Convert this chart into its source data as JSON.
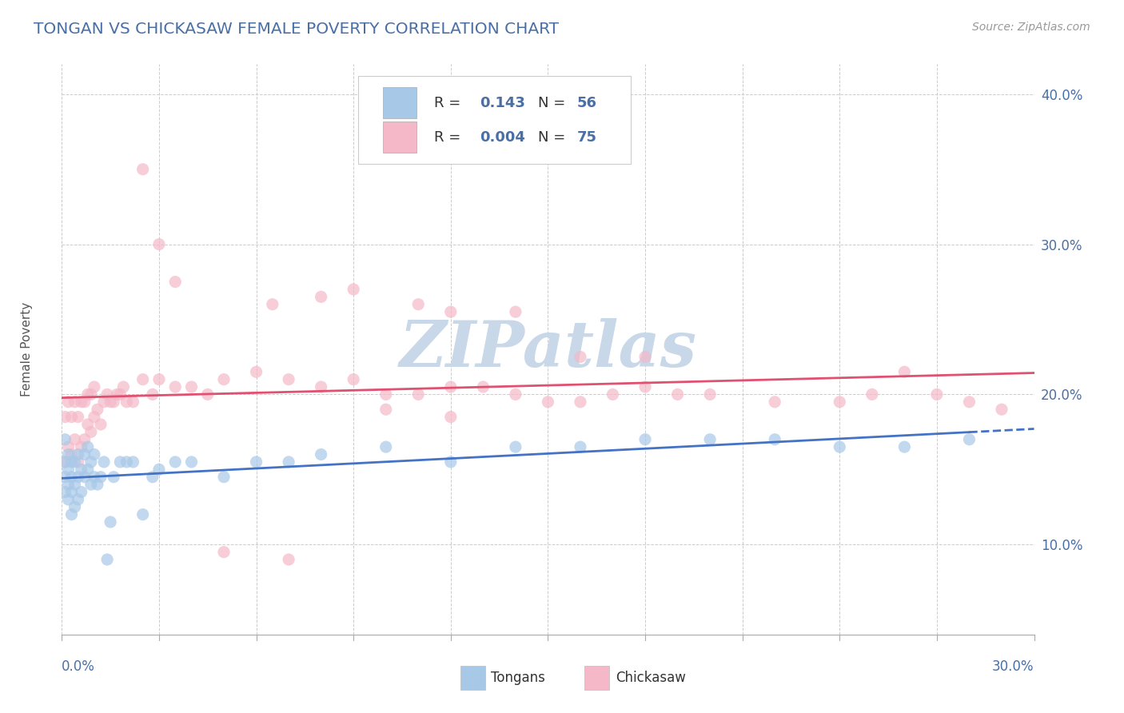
{
  "title": "TONGAN VS CHICKASAW FEMALE POVERTY CORRELATION CHART",
  "source_text": "Source: ZipAtlas.com",
  "R1": "0.143",
  "N1": "56",
  "R2": "0.004",
  "N2": "75",
  "color_blue": "#a8c8e8",
  "color_pink": "#f4b8c8",
  "trendline_blue": "#4472c4",
  "trendline_pink": "#e05070",
  "watermark_color": "#c8d8e8",
  "title_color": "#4a6fa5",
  "axis_label_color": "#4a6fa5",
  "legend_text_color": "#333333",
  "legend_value_color": "#4a6fa5",
  "background_color": "#ffffff",
  "grid_color": "#cccccc",
  "xmin": 0.0,
  "xmax": 0.3,
  "ymin": 0.04,
  "ymax": 0.42,
  "tongans_x": [
    0.001,
    0.001,
    0.001,
    0.001,
    0.002,
    0.002,
    0.002,
    0.002,
    0.003,
    0.003,
    0.003,
    0.003,
    0.004,
    0.004,
    0.004,
    0.005,
    0.005,
    0.005,
    0.006,
    0.006,
    0.007,
    0.007,
    0.008,
    0.008,
    0.009,
    0.009,
    0.01,
    0.01,
    0.011,
    0.012,
    0.013,
    0.014,
    0.015,
    0.016,
    0.018,
    0.02,
    0.022,
    0.025,
    0.028,
    0.03,
    0.035,
    0.04,
    0.05,
    0.06,
    0.07,
    0.08,
    0.1,
    0.12,
    0.14,
    0.16,
    0.18,
    0.2,
    0.22,
    0.24,
    0.26,
    0.28
  ],
  "tongans_y": [
    0.135,
    0.145,
    0.155,
    0.17,
    0.13,
    0.14,
    0.15,
    0.16,
    0.12,
    0.135,
    0.145,
    0.155,
    0.125,
    0.14,
    0.155,
    0.13,
    0.145,
    0.16,
    0.135,
    0.15,
    0.145,
    0.16,
    0.15,
    0.165,
    0.14,
    0.155,
    0.145,
    0.16,
    0.14,
    0.145,
    0.155,
    0.09,
    0.115,
    0.145,
    0.155,
    0.155,
    0.155,
    0.12,
    0.145,
    0.15,
    0.155,
    0.155,
    0.145,
    0.155,
    0.155,
    0.16,
    0.165,
    0.155,
    0.165,
    0.165,
    0.17,
    0.17,
    0.17,
    0.165,
    0.165,
    0.17
  ],
  "chickasaw_x": [
    0.001,
    0.001,
    0.002,
    0.002,
    0.003,
    0.003,
    0.004,
    0.004,
    0.005,
    0.005,
    0.006,
    0.006,
    0.007,
    0.007,
    0.008,
    0.008,
    0.009,
    0.009,
    0.01,
    0.01,
    0.011,
    0.012,
    0.013,
    0.014,
    0.015,
    0.016,
    0.017,
    0.018,
    0.019,
    0.02,
    0.022,
    0.025,
    0.028,
    0.03,
    0.035,
    0.04,
    0.045,
    0.05,
    0.06,
    0.07,
    0.08,
    0.09,
    0.1,
    0.11,
    0.12,
    0.13,
    0.14,
    0.15,
    0.16,
    0.17,
    0.18,
    0.19,
    0.2,
    0.22,
    0.24,
    0.25,
    0.26,
    0.27,
    0.28,
    0.29,
    0.05,
    0.07,
    0.08,
    0.09,
    0.12,
    0.14,
    0.16,
    0.18,
    0.1,
    0.12,
    0.025,
    0.03,
    0.035,
    0.065,
    0.11
  ],
  "chickasaw_y": [
    0.155,
    0.185,
    0.165,
    0.195,
    0.16,
    0.185,
    0.17,
    0.195,
    0.155,
    0.185,
    0.165,
    0.195,
    0.17,
    0.195,
    0.18,
    0.2,
    0.175,
    0.2,
    0.185,
    0.205,
    0.19,
    0.18,
    0.195,
    0.2,
    0.195,
    0.195,
    0.2,
    0.2,
    0.205,
    0.195,
    0.195,
    0.21,
    0.2,
    0.21,
    0.205,
    0.205,
    0.2,
    0.21,
    0.215,
    0.21,
    0.205,
    0.21,
    0.2,
    0.2,
    0.205,
    0.205,
    0.2,
    0.195,
    0.195,
    0.2,
    0.205,
    0.2,
    0.2,
    0.195,
    0.195,
    0.2,
    0.215,
    0.2,
    0.195,
    0.19,
    0.095,
    0.09,
    0.265,
    0.27,
    0.255,
    0.255,
    0.225,
    0.225,
    0.19,
    0.185,
    0.35,
    0.3,
    0.275,
    0.26,
    0.26
  ]
}
